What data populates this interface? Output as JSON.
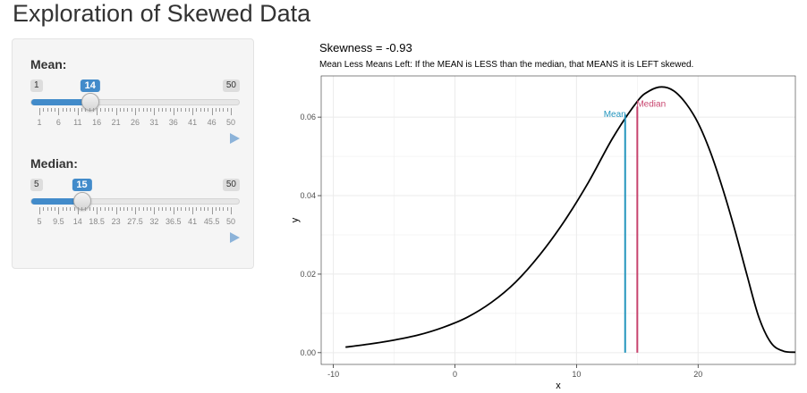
{
  "page": {
    "title": "Exploration of Skewed Data"
  },
  "controls": [
    {
      "id": "mean",
      "label": "Mean:",
      "min": 1,
      "max": 50,
      "value": 14,
      "min_label": "1",
      "max_label": "50",
      "value_label": "14",
      "ticks": [
        "1",
        "6",
        "11",
        "16",
        "21",
        "26",
        "31",
        "36",
        "41",
        "46",
        "50"
      ]
    },
    {
      "id": "median",
      "label": "Median:",
      "min": 5,
      "max": 50,
      "value": 15,
      "min_label": "5",
      "max_label": "50",
      "value_label": "15",
      "ticks": [
        "5",
        "9.5",
        "14",
        "18.5",
        "23",
        "27.5",
        "32",
        "36.5",
        "41",
        "45.5",
        "50"
      ]
    }
  ],
  "colors": {
    "accent": "#428bca",
    "mean_line": "#2596be",
    "median_line": "#c8446e",
    "curve": "#000000",
    "grid": "#ebebeb"
  },
  "chart_data": {
    "type": "line",
    "title": "Skewness = -0.93",
    "subtitle": "Mean Less Means Left: If the MEAN is LESS than the median, that MEANS it is LEFT skewed.",
    "xlabel": "x",
    "ylabel": "y",
    "xlim": [
      -11,
      28
    ],
    "ylim": [
      -0.003,
      0.0705
    ],
    "xticks": [
      -10,
      0,
      10,
      20
    ],
    "xtick_labels": [
      "-10",
      "0",
      "10",
      "20"
    ],
    "yticks": [
      0,
      0.02,
      0.04,
      0.06
    ],
    "ytick_labels": [
      "0.00",
      "0.02",
      "0.04",
      "0.06"
    ],
    "grid": true,
    "series": [
      {
        "x": [
          -9,
          -7,
          -5,
          -3,
          -1,
          1,
          3,
          5,
          7,
          9,
          11,
          13,
          15,
          16,
          17,
          18,
          19,
          20,
          21,
          22,
          23,
          24,
          25,
          26,
          27,
          28
        ],
        "y": [
          0.0014,
          0.0022,
          0.0032,
          0.0045,
          0.0064,
          0.009,
          0.0128,
          0.018,
          0.025,
          0.0335,
          0.0435,
          0.0548,
          0.064,
          0.0667,
          0.0677,
          0.0667,
          0.0635,
          0.0585,
          0.0512,
          0.042,
          0.0315,
          0.02,
          0.009,
          0.0025,
          0.0004,
          0.0001
        ]
      }
    ],
    "annotations": [
      {
        "label": "Mean",
        "x": 14,
        "y_top": 0.0607,
        "color": "#2596be"
      },
      {
        "label": "Median",
        "x": 15,
        "y_top": 0.0627,
        "color": "#c8446e"
      }
    ]
  }
}
